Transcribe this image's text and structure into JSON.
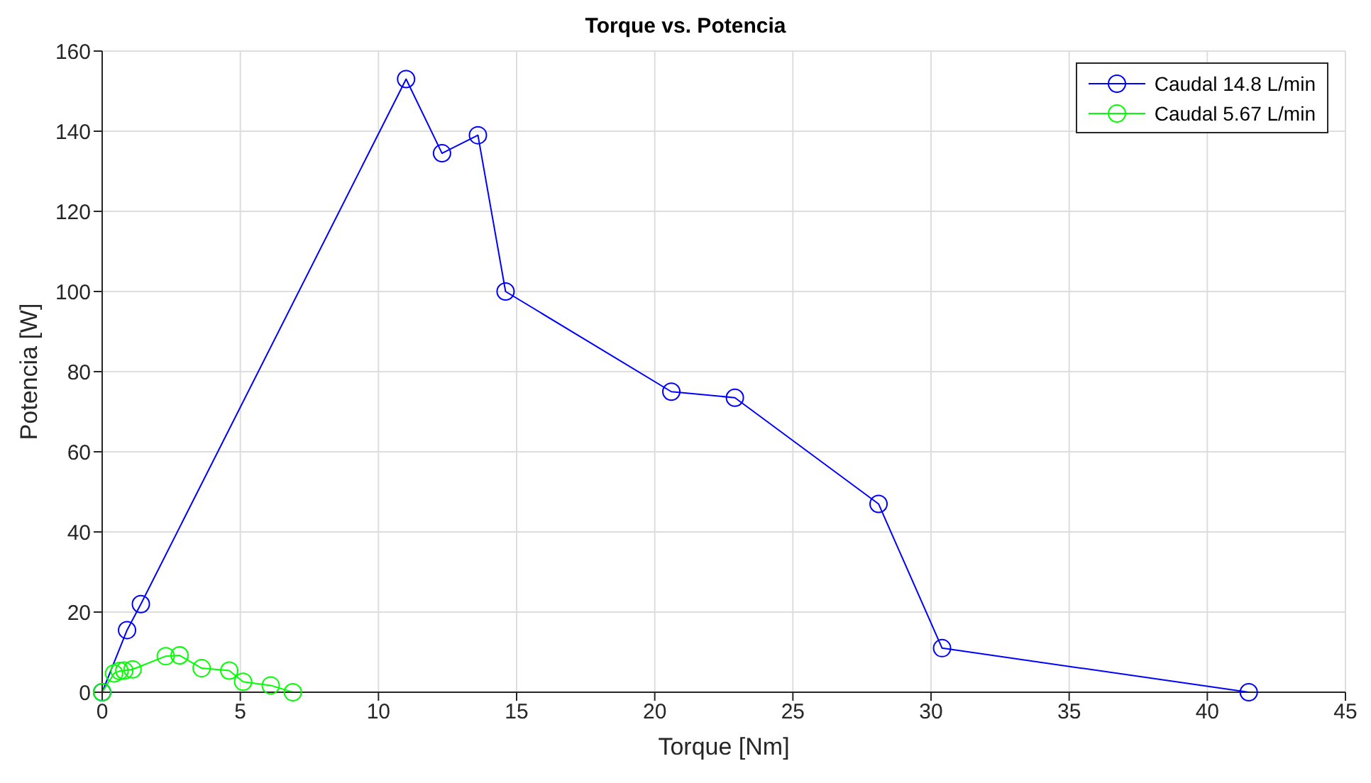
{
  "chart_data": {
    "type": "line",
    "title": "Torque vs. Potencia",
    "xlabel": "Torque [Nm]",
    "ylabel": "Potencia [W]",
    "xlim": [
      0,
      45
    ],
    "xticks": [
      0,
      5,
      10,
      15,
      20,
      25,
      30,
      35,
      40,
      45
    ],
    "ylim": [
      0,
      160
    ],
    "yticks": [
      0,
      20,
      40,
      60,
      80,
      100,
      120,
      140,
      160
    ],
    "grid": true,
    "legend": "top right",
    "marker": "circle",
    "line_style": "solid",
    "series": [
      {
        "name": "Caudal 14.8 L/min",
        "color": "#0000ff",
        "x": [
          0,
          0.9,
          1.4,
          11,
          12.3,
          13.6,
          14.6,
          20.6,
          22.9,
          28.1,
          30.4,
          41.5
        ],
        "values": [
          0,
          15.5,
          22,
          153,
          134.5,
          139,
          100,
          75,
          73.5,
          47,
          11,
          0
        ]
      },
      {
        "name": "Caudal 5.67 L/min",
        "color": "#00ff00",
        "x": [
          0,
          0.43,
          0.63,
          0.8,
          1.1,
          2.3,
          2.8,
          3.6,
          4.6,
          5.1,
          6.1,
          6.9
        ],
        "values": [
          0,
          4.7,
          5.3,
          5.4,
          5.7,
          9,
          9.2,
          6,
          5.4,
          2.6,
          1.7,
          0
        ]
      }
    ]
  }
}
